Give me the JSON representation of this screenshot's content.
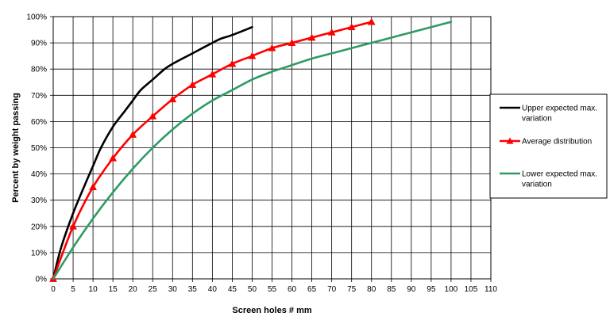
{
  "chart_data": {
    "type": "line",
    "title": "",
    "xlabel": "Screen holes # mm",
    "ylabel": "Percent by weight passing",
    "xlim": [
      0,
      110
    ],
    "ylim": [
      0,
      100
    ],
    "x_ticks": [
      0,
      5,
      10,
      15,
      20,
      25,
      30,
      35,
      40,
      45,
      50,
      55,
      60,
      65,
      70,
      75,
      80,
      85,
      90,
      95,
      100,
      105,
      110
    ],
    "x_tick_labels": [
      "0",
      "5",
      "10",
      "15",
      "20",
      "25",
      "30",
      "35",
      "40",
      "45",
      "50",
      "55",
      "60",
      "65",
      "70",
      "75",
      "80",
      "85",
      "90",
      "95",
      "100",
      "105",
      "110"
    ],
    "y_ticks": [
      0,
      10,
      20,
      30,
      40,
      50,
      60,
      70,
      80,
      90,
      100
    ],
    "y_tick_labels": [
      "0%",
      "10%",
      "20%",
      "30%",
      "40%",
      "50%",
      "60%",
      "70%",
      "80%",
      "90%",
      "100%"
    ],
    "grid": true,
    "legend_position": "right",
    "series": [
      {
        "name": "Upper expected max. variation",
        "color": "#000000",
        "marker": "none",
        "x": [
          0,
          2,
          5,
          8,
          10,
          12,
          15,
          18,
          20,
          22,
          25,
          28,
          30,
          35,
          40,
          42,
          45,
          50
        ],
        "y": [
          0,
          12,
          25,
          36,
          43,
          50,
          58,
          64,
          68,
          72,
          76,
          80,
          82,
          86,
          90,
          91.5,
          93,
          96
        ]
      },
      {
        "name": "Average distribution",
        "color": "#ff0000",
        "marker": "triangle",
        "x": [
          0,
          5,
          10,
          15,
          20,
          25,
          30,
          35,
          40,
          45,
          50,
          55,
          60,
          65,
          70,
          75,
          80
        ],
        "y": [
          0,
          20,
          35,
          46,
          55,
          62,
          68.5,
          74,
          78,
          82,
          85,
          88,
          90,
          92,
          94,
          96,
          98
        ]
      },
      {
        "name": "Lower expected max. variation",
        "color": "#2e9b62",
        "marker": "none",
        "x": [
          0,
          5,
          10,
          15,
          20,
          25,
          30,
          35,
          40,
          45,
          50,
          55,
          60,
          65,
          70,
          75,
          80,
          85,
          90,
          95,
          100
        ],
        "y": [
          0,
          12,
          23,
          33,
          42,
          50,
          57,
          63,
          68,
          72,
          76,
          79,
          81.5,
          84,
          86,
          88,
          90,
          92,
          94,
          96,
          98
        ]
      }
    ]
  }
}
